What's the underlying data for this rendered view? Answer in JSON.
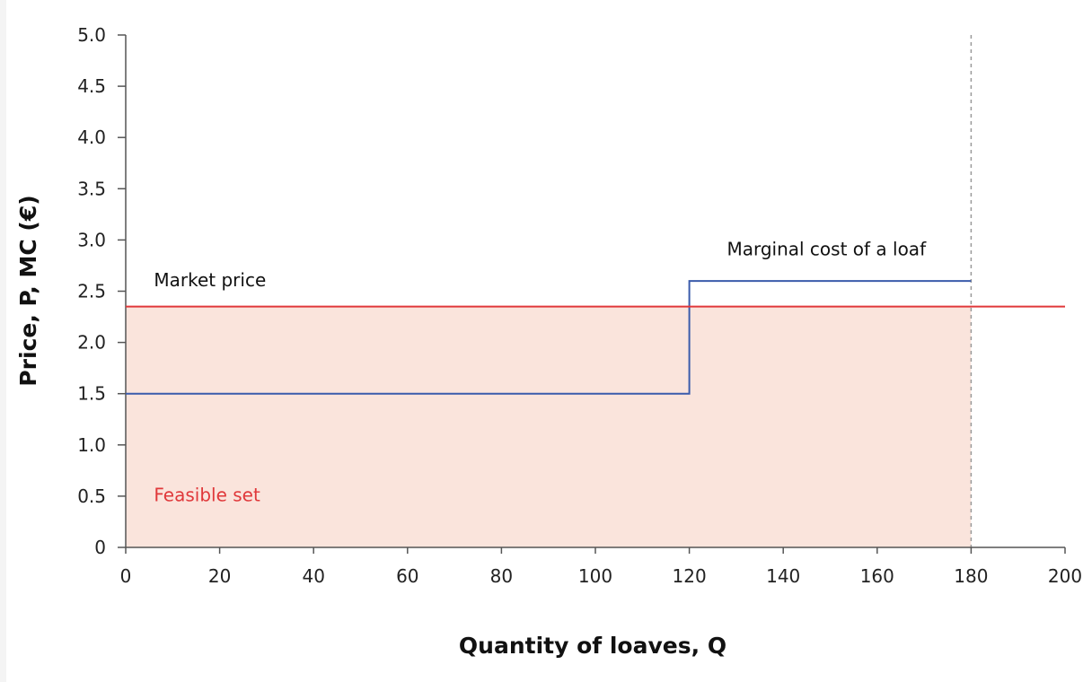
{
  "chart_data": {
    "type": "line",
    "xlabel": "Quantity of loaves, Q",
    "ylabel": "Price, P, MC (€)",
    "xlim": [
      0,
      200
    ],
    "ylim": [
      0,
      5.0
    ],
    "x_ticks": [
      0,
      20,
      40,
      60,
      80,
      100,
      120,
      140,
      160,
      180,
      200
    ],
    "y_ticks": [
      0,
      0.5,
      1.0,
      1.5,
      2.0,
      2.5,
      3.0,
      3.5,
      4.0,
      4.5,
      5.0
    ],
    "y_tick_labels": [
      "0",
      "0.5",
      "1.0",
      "1.5",
      "2.0",
      "2.5",
      "3.0",
      "3.5",
      "4.0",
      "4.5",
      "5.0"
    ],
    "grid": false,
    "series": [
      {
        "name": "Marginal cost of a loaf",
        "color": "#3a5bab",
        "step": true,
        "x": [
          0,
          120,
          120,
          180
        ],
        "y": [
          1.5,
          1.5,
          2.6,
          2.6
        ]
      },
      {
        "name": "Market price",
        "color": "#e0383a",
        "x": [
          0,
          200
        ],
        "y": [
          2.35,
          2.35
        ]
      }
    ],
    "shaded_region": {
      "name": "Feasible set",
      "x": [
        0,
        180
      ],
      "y": [
        0,
        2.35
      ],
      "color": "#fae4dc"
    },
    "vertical_line": {
      "x": 180,
      "style": "dashed",
      "color": "#999999"
    },
    "annotations": [
      {
        "text": "Market price",
        "x": 6,
        "y": 2.55,
        "color": "#111111"
      },
      {
        "text": "Marginal cost of a loaf",
        "x": 128,
        "y": 2.85,
        "color": "#111111"
      },
      {
        "text": "Feasible set",
        "x": 6,
        "y": 0.45,
        "color": "#e0383a"
      }
    ]
  }
}
